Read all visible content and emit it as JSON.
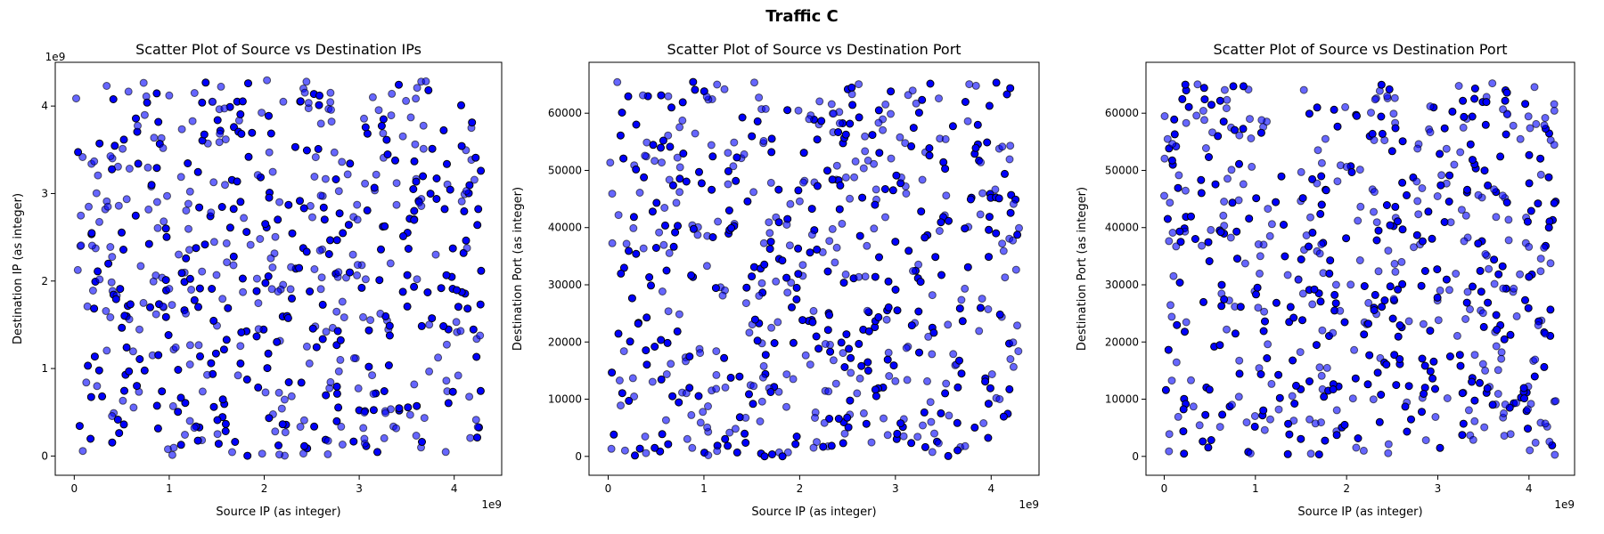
{
  "figure": {
    "title": "Traffic C"
  },
  "colors": {
    "point_fill": "#0000ff",
    "point_edge": "#000000"
  },
  "chart_data": [
    {
      "type": "scatter",
      "title": "Scatter Plot of Source vs Destination IPs",
      "xlabel": "Source IP (as integer)",
      "ylabel": "Destination IP (as integer)",
      "x_offset_label": "1e9",
      "y_offset_label": "1e9",
      "xlim": [
        -200000000,
        4500000000
      ],
      "ylim": [
        -220000000,
        4500000000
      ],
      "xticks": [
        0,
        1000000000,
        2000000000,
        3000000000,
        4000000000
      ],
      "xtick_labels": [
        "0",
        "1",
        "2",
        "3",
        "4"
      ],
      "yticks": [
        0,
        1000000000,
        2000000000,
        3000000000,
        4000000000
      ],
      "ytick_labels": [
        "0",
        "1",
        "2",
        "3",
        "4"
      ],
      "points_approx": 600,
      "x_range": [
        0,
        4294967295
      ],
      "y_range": [
        0,
        4294967295
      ],
      "random_seed": 101
    },
    {
      "type": "scatter",
      "title": "Scatter Plot of Source vs Destination Port",
      "xlabel": "Source IP (as integer)",
      "ylabel": "Destination Port (as integer)",
      "x_offset_label": "1e9",
      "xlim": [
        -200000000,
        4500000000
      ],
      "ylim": [
        -3300000,
        68900000
      ],
      "xticks": [
        0,
        1000000000,
        2000000000,
        3000000000,
        4000000000
      ],
      "xtick_labels": [
        "0",
        "1",
        "2",
        "3",
        "4"
      ],
      "yticks": [
        0,
        10000,
        20000,
        30000,
        40000,
        50000,
        60000
      ],
      "ytick_labels": [
        "0",
        "10000",
        "20000",
        "30000",
        "40000",
        "50000",
        "60000"
      ],
      "ylim_data": [
        -3300,
        68900
      ],
      "points_approx": 600,
      "x_range": [
        0,
        4294967295
      ],
      "y_range": [
        0,
        65535
      ],
      "random_seed": 202
    },
    {
      "type": "scatter",
      "title": "Scatter Plot of Source vs Destination Port",
      "xlabel": "Source IP (as integer)",
      "ylabel": "Destination Port (as integer)",
      "x_offset_label": "1e9",
      "xlim": [
        -200000000,
        4500000000
      ],
      "ylim": [
        -3300000,
        68900000
      ],
      "xticks": [
        0,
        1000000000,
        2000000000,
        3000000000,
        4000000000
      ],
      "xtick_labels": [
        "0",
        "1",
        "2",
        "3",
        "4"
      ],
      "yticks": [
        0,
        10000,
        20000,
        30000,
        40000,
        50000,
        60000
      ],
      "ytick_labels": [
        "0",
        "10000",
        "20000",
        "30000",
        "40000",
        "50000",
        "60000"
      ],
      "ylim_data": [
        -3300,
        68900
      ],
      "points_approx": 600,
      "x_range": [
        0,
        4294967295
      ],
      "y_range": [
        0,
        65535
      ],
      "random_seed": 303
    }
  ]
}
